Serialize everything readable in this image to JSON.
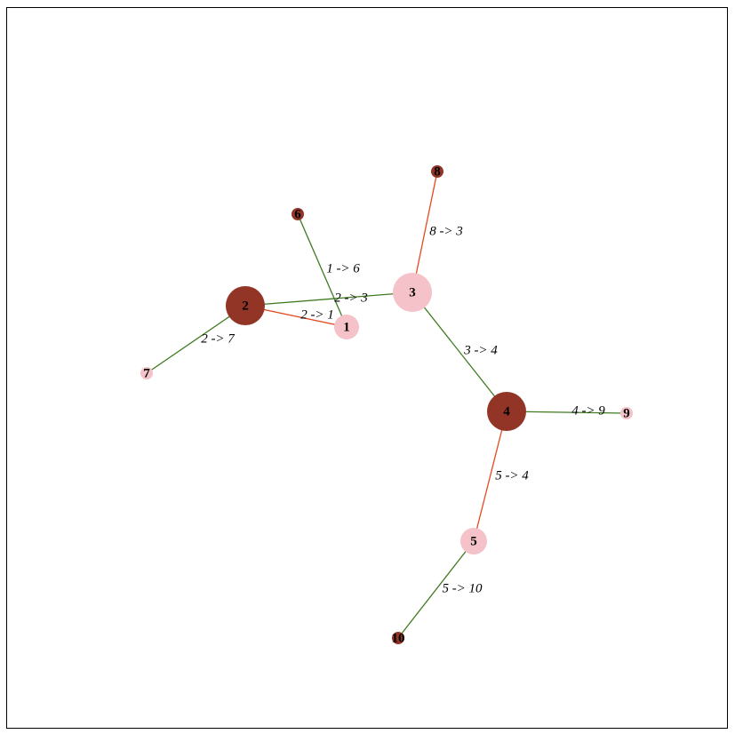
{
  "colors": {
    "node_dark": "#923526",
    "node_light": "#f4c2c8",
    "edge_green": "#3f7a20",
    "edge_red": "#e24a1f"
  },
  "nodes": [
    {
      "id": "1",
      "label": "1",
      "shade": "light"
    },
    {
      "id": "2",
      "label": "2",
      "shade": "dark"
    },
    {
      "id": "3",
      "label": "3",
      "shade": "light"
    },
    {
      "id": "4",
      "label": "4",
      "shade": "dark"
    },
    {
      "id": "5",
      "label": "5",
      "shade": "light"
    },
    {
      "id": "6",
      "label": "6",
      "shade": "dark"
    },
    {
      "id": "7",
      "label": "7",
      "shade": "light"
    },
    {
      "id": "8",
      "label": "8",
      "shade": "dark"
    },
    {
      "id": "9",
      "label": "9",
      "shade": "light"
    },
    {
      "id": "10",
      "label": "10",
      "shade": "dark"
    }
  ],
  "edges": [
    {
      "source": "2",
      "target": "3",
      "label": "2 -> 3",
      "color": "green"
    },
    {
      "source": "2",
      "target": "1",
      "label": "2 -> 1",
      "color": "red"
    },
    {
      "source": "1",
      "target": "6",
      "label": "1 -> 6",
      "color": "green"
    },
    {
      "source": "2",
      "target": "7",
      "label": "2 -> 7",
      "color": "green"
    },
    {
      "source": "8",
      "target": "3",
      "label": "8 -> 3",
      "color": "red"
    },
    {
      "source": "3",
      "target": "4",
      "label": "3 -> 4",
      "color": "green"
    },
    {
      "source": "4",
      "target": "9",
      "label": "4 -> 9",
      "color": "green"
    },
    {
      "source": "5",
      "target": "4",
      "label": "5 -> 4",
      "color": "red"
    },
    {
      "source": "5",
      "target": "10",
      "label": "5 -> 10",
      "color": "green"
    }
  ]
}
